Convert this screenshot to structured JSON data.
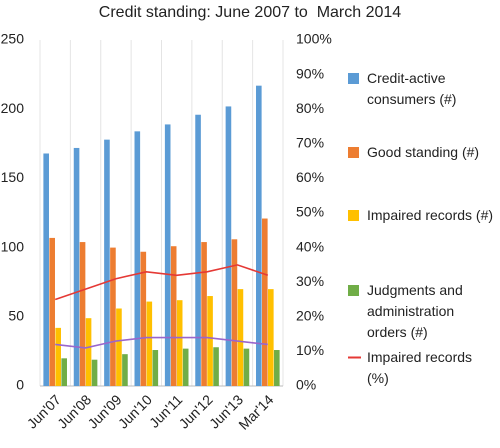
{
  "chart_data": {
    "type": "bar",
    "title": "Credit standing: June 2007 to  March 2014",
    "categories": [
      "Jun'07",
      "Jun'08",
      "Jun'09",
      "Jun'10",
      "Jun'11",
      "Jun'12",
      "Jun'13",
      "Mar'14"
    ],
    "series": [
      {
        "name": "Credit-active consumers (#)",
        "type": "bar",
        "color": "#5b9bd5",
        "values": [
          168,
          172,
          178,
          184,
          189,
          196,
          202,
          217
        ]
      },
      {
        "name": "Good standing (#)",
        "type": "bar",
        "color": "#ed7d31",
        "values": [
          107,
          104,
          100,
          97,
          101,
          104,
          106,
          121
        ]
      },
      {
        "name": "Impaired records (#)",
        "type": "bar",
        "color": "#ffc000",
        "values": [
          42,
          49,
          56,
          61,
          62,
          65,
          70,
          70
        ]
      },
      {
        "name": "Judgments and administration orders (#)",
        "type": "bar",
        "color": "#70ad47",
        "values": [
          20,
          19,
          23,
          26,
          27,
          28,
          27,
          26
        ]
      },
      {
        "name": "Impaired records (%)",
        "type": "line",
        "axis": "y2",
        "color": "#e53935",
        "values": [
          25,
          28,
          31,
          33,
          32,
          33,
          35,
          32
        ]
      },
      {
        "type": "line",
        "axis": "y2",
        "color": "#9966cc",
        "values": [
          12,
          11,
          13,
          14,
          14,
          14,
          13,
          12
        ]
      }
    ],
    "ylim": [
      0,
      250
    ],
    "yticks": [
      0,
      50,
      100,
      150,
      200,
      250
    ],
    "y2lim": [
      0,
      100
    ],
    "y2ticks": [
      {
        "value": 0,
        "label": "0%"
      },
      {
        "value": 10,
        "label": "10%"
      },
      {
        "value": 20,
        "label": "20%"
      },
      {
        "value": 30,
        "label": "30%"
      },
      {
        "value": 40,
        "label": "40%"
      },
      {
        "value": 50,
        "label": "50%"
      },
      {
        "value": 60,
        "label": "60%"
      },
      {
        "value": 70,
        "label": "70%"
      },
      {
        "value": 80,
        "label": "80%"
      },
      {
        "value": 90,
        "label": "90%"
      },
      {
        "value": 100,
        "label": "100%"
      }
    ],
    "legend": "right"
  }
}
